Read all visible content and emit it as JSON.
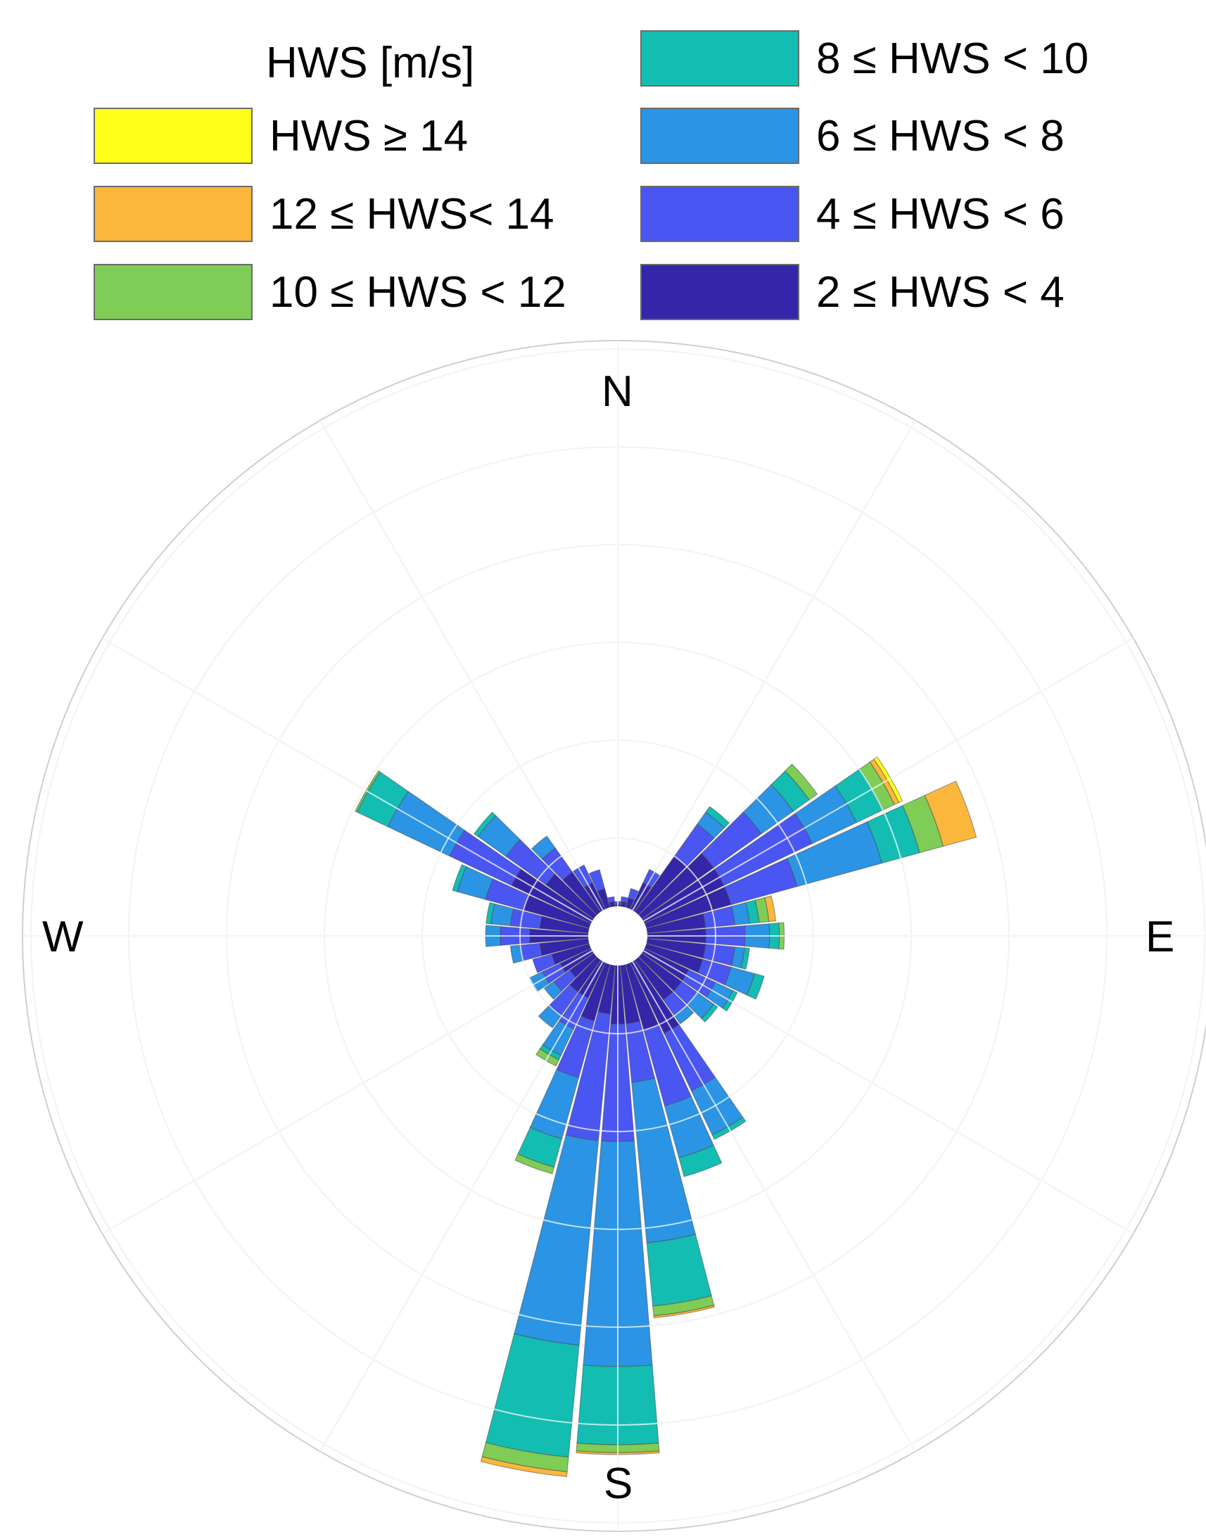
{
  "legend": {
    "title": "HWS [m/s]",
    "bins": [
      {
        "label": "HWS ≥ 14",
        "color": "#ffff1a"
      },
      {
        "label": "12 ≤ HWS< 14",
        "color": "#fbb73c"
      },
      {
        "label": "10 ≤ HWS < 12",
        "color": "#7fcc56"
      },
      {
        "label": "8 ≤ HWS < 10",
        "color": "#14bdb1"
      },
      {
        "label": "6 ≤ HWS < 8",
        "color": "#2b94e4"
      },
      {
        "label": "4 ≤ HWS < 6",
        "color": "#4a56f2"
      },
      {
        "label": "2 ≤ HWS < 4",
        "color": "#3326a8"
      }
    ]
  },
  "directions": {
    "north": "N",
    "east": "E",
    "south": "S",
    "west": "W"
  },
  "chart_data": {
    "type": "wind-rose",
    "title": "",
    "legend_title": "HWS [m/s]",
    "legend_position": "top",
    "grid": true,
    "angular_grid_step_deg": 30,
    "radial_rings": 6,
    "bin_width_deg": 10,
    "speed_bins": [
      "2 ≤ HWS < 4",
      "4 ≤ HWS < 6",
      "6 ≤ HWS < 8",
      "8 ≤ HWS < 10",
      "10 ≤ HWS < 12",
      "12 ≤ HWS< 14",
      "HWS ≥ 14"
    ],
    "series_note_units": "cumulative ring units (6 = outer ring)",
    "sectors": [
      {
        "dir": 0,
        "cum": [
          0.02,
          0.05
        ]
      },
      {
        "dir": 10,
        "cum": [
          0.05,
          0.1
        ]
      },
      {
        "dir": 20,
        "cum": [
          0.1,
          0.2
        ]
      },
      {
        "dir": 30,
        "cum": [
          0.3,
          0.45
        ]
      },
      {
        "dir": 40,
        "cum": [
          0.7,
          1.1,
          1.25,
          1.32
        ]
      },
      {
        "dir": 50,
        "cum": [
          0.9,
          1.5,
          1.9,
          2.1,
          2.2
        ]
      },
      {
        "dir": 60,
        "cum": [
          0.9,
          1.9,
          2.4,
          2.7,
          2.83,
          2.88,
          2.92
        ]
      },
      {
        "dir": 70,
        "cum": [
          0.9,
          1.6,
          2.5,
          2.9,
          3.15,
          3.5
        ]
      },
      {
        "dir": 80,
        "cum": [
          0.6,
          0.9,
          1.05,
          1.15,
          1.25,
          1.32
        ]
      },
      {
        "dir": 90,
        "cum": [
          0.6,
          1.0,
          1.25,
          1.35,
          1.4
        ]
      },
      {
        "dir": 100,
        "cum": [
          0.6,
          0.9,
          1.0,
          1.05
        ]
      },
      {
        "dir": 110,
        "cum": [
          0.6,
          0.9,
          1.15,
          1.25
        ]
      },
      {
        "dir": 120,
        "cum": [
          0.5,
          0.8,
          1.0,
          1.05
        ]
      },
      {
        "dir": 130,
        "cum": [
          0.5,
          0.7,
          0.9,
          0.95
        ]
      },
      {
        "dir": 140,
        "cum": [
          0.5,
          0.7,
          0.8
        ]
      },
      {
        "dir": 150,
        "cum": [
          0.8,
          1.45,
          1.95,
          2.0
        ]
      },
      {
        "dir": 160,
        "cum": [
          0.7,
          1.5,
          2.05,
          2.25
        ]
      },
      {
        "dir": 170,
        "cum": [
          0.6,
          1.2,
          2.85,
          3.5,
          3.6,
          3.62
        ]
      },
      {
        "dir": 180,
        "cum": [
          0.6,
          1.8,
          4.1,
          4.9,
          4.98,
          5.0
        ]
      },
      {
        "dir": 190,
        "cum": [
          0.5,
          1.8,
          3.9,
          5.05,
          5.2,
          5.25
        ]
      },
      {
        "dir": 200,
        "cum": [
          0.6,
          1.2,
          1.85,
          2.15,
          2.22
        ]
      },
      {
        "dir": 210,
        "cum": [
          0.4,
          0.75,
          1.05,
          1.1,
          1.17
        ]
      },
      {
        "dir": 220,
        "cum": [
          0.4,
          0.7,
          0.85
        ]
      },
      {
        "dir": 230,
        "cum": [
          0.3,
          0.5,
          0.62
        ]
      },
      {
        "dir": 240,
        "cum": [
          0.35,
          0.55,
          0.7
        ]
      },
      {
        "dir": 250,
        "cum": [
          0.4,
          0.6
        ]
      },
      {
        "dir": 260,
        "cum": [
          0.5,
          0.7,
          0.8
        ]
      },
      {
        "dir": 270,
        "cum": [
          0.6,
          0.9,
          1.05
        ]
      },
      {
        "dir": 280,
        "cum": [
          0.5,
          0.8,
          1.0,
          1.05
        ]
      },
      {
        "dir": 290,
        "cum": [
          0.7,
          1.1,
          1.4,
          1.45
        ]
      },
      {
        "dir": 300,
        "cum": [
          0.9,
          1.6,
          2.3,
          2.65,
          2.67
        ]
      },
      {
        "dir": 310,
        "cum": [
          0.6,
          1.1,
          1.45,
          1.5
        ]
      },
      {
        "dir": 320,
        "cum": [
          0.5,
          0.8,
          0.95
        ]
      },
      {
        "dir": 330,
        "cum": [
          0.3,
          0.5
        ]
      },
      {
        "dir": 340,
        "cum": [
          0.2,
          0.4
        ]
      },
      {
        "dir": 350,
        "cum": [
          0.05,
          0.1
        ]
      }
    ]
  }
}
